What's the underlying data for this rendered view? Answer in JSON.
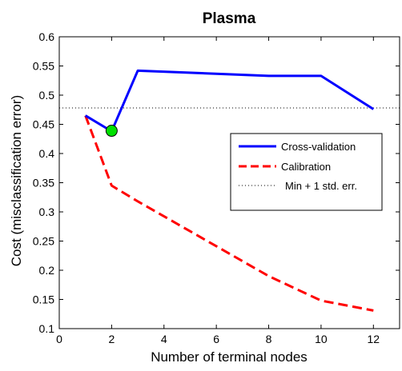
{
  "chart_data": {
    "type": "line",
    "title": "Plasma",
    "xlabel": "Number of terminal nodes",
    "ylabel": "Cost (misclassification error)",
    "xlim": [
      0,
      13
    ],
    "ylim": [
      0.1,
      0.6
    ],
    "xticks": [
      0,
      2,
      4,
      6,
      8,
      10,
      12
    ],
    "yticks": [
      0.1,
      0.15,
      0.2,
      0.25,
      0.3,
      0.35,
      0.4,
      0.45,
      0.5,
      0.55,
      0.6
    ],
    "grid": false,
    "legend_position": "right",
    "series": [
      {
        "name": "Cross-validation",
        "color": "#0000ff",
        "style": "solid",
        "x": [
          1,
          2,
          3,
          8,
          10,
          12
        ],
        "y": [
          0.465,
          0.438,
          0.542,
          0.533,
          0.533,
          0.476
        ]
      },
      {
        "name": "Calibration",
        "color": "#ff0000",
        "style": "dashed",
        "x": [
          1,
          2,
          3,
          8,
          10,
          12
        ],
        "y": [
          0.465,
          0.345,
          0.318,
          0.19,
          0.148,
          0.131
        ]
      },
      {
        "name": "Min + 1 std. err.",
        "color": "#000000",
        "style": "dotted",
        "x": [
          0,
          13
        ],
        "y": [
          0.478,
          0.478
        ]
      }
    ],
    "marker": {
      "x": 2,
      "y": 0.439,
      "color": "#00e000"
    }
  }
}
